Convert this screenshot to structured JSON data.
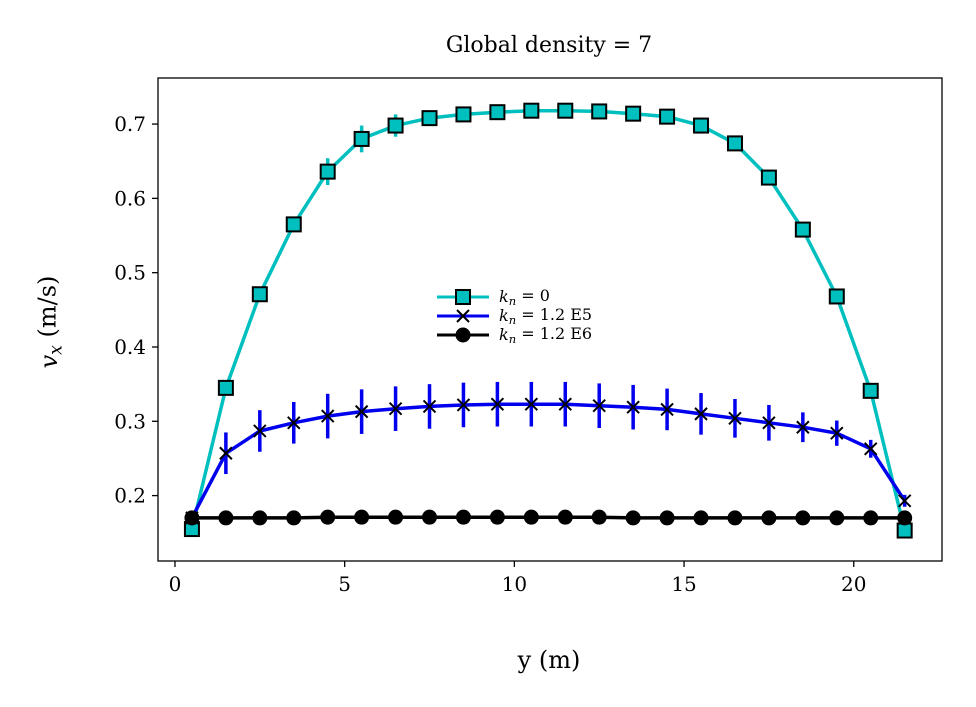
{
  "chart_data": {
    "type": "line",
    "title": "Global density = 7",
    "xlabel": "y (m)",
    "ylabel": "v_x (m/s)",
    "xlim": [
      -0.5,
      22.6
    ],
    "ylim": [
      0.112,
      0.762
    ],
    "xticks": [
      0,
      5,
      10,
      15,
      20
    ],
    "yticks": [
      0.2,
      0.3,
      0.4,
      0.5,
      0.6,
      0.7
    ],
    "xtick_labels": [
      "0",
      "5",
      "10",
      "15",
      "20"
    ],
    "ytick_labels": [
      "0.2",
      "0.3",
      "0.4",
      "0.5",
      "0.6",
      "0.7"
    ],
    "grid": false,
    "legend_position": "center",
    "x": [
      0.5,
      1.5,
      2.5,
      3.5,
      4.5,
      5.5,
      6.5,
      7.5,
      8.5,
      9.5,
      10.5,
      11.5,
      12.5,
      13.5,
      14.5,
      15.5,
      16.5,
      17.5,
      18.5,
      19.5,
      20.5,
      21.5
    ],
    "series": [
      {
        "name": "k_n = 0",
        "color": "#00bfbf",
        "marker": "square",
        "values": [
          0.155,
          0.345,
          0.471,
          0.565,
          0.636,
          0.68,
          0.698,
          0.708,
          0.713,
          0.716,
          0.718,
          0.718,
          0.717,
          0.714,
          0.71,
          0.698,
          0.674,
          0.628,
          0.558,
          0.468,
          0.341,
          0.153
        ],
        "errors": [
          0.005,
          0.005,
          0.006,
          0.01,
          0.018,
          0.018,
          0.015,
          0.01,
          0.006,
          0.005,
          0.005,
          0.005,
          0.005,
          0.005,
          0.005,
          0.006,
          0.006,
          0.006,
          0.006,
          0.006,
          0.006,
          0.005
        ]
      },
      {
        "name": "k_n = 1.2 E5",
        "color": "#0000ee",
        "marker": "x",
        "values": [
          0.17,
          0.257,
          0.287,
          0.298,
          0.307,
          0.313,
          0.317,
          0.32,
          0.322,
          0.323,
          0.323,
          0.323,
          0.321,
          0.319,
          0.316,
          0.31,
          0.304,
          0.298,
          0.292,
          0.284,
          0.263,
          0.193
        ],
        "errors": [
          0.005,
          0.028,
          0.028,
          0.028,
          0.03,
          0.03,
          0.03,
          0.03,
          0.03,
          0.03,
          0.03,
          0.03,
          0.03,
          0.03,
          0.028,
          0.028,
          0.026,
          0.024,
          0.02,
          0.017,
          0.012,
          0.008
        ]
      },
      {
        "name": "k_n = 1.2 E6",
        "color": "#000000",
        "marker": "circle",
        "values": [
          0.17,
          0.17,
          0.17,
          0.17,
          0.171,
          0.171,
          0.171,
          0.171,
          0.171,
          0.171,
          0.171,
          0.171,
          0.171,
          0.17,
          0.17,
          0.17,
          0.17,
          0.17,
          0.17,
          0.17,
          0.17,
          0.17
        ],
        "errors": [
          0,
          0,
          0,
          0,
          0,
          0,
          0,
          0,
          0,
          0,
          0,
          0,
          0,
          0,
          0,
          0,
          0,
          0,
          0,
          0,
          0,
          0
        ]
      }
    ]
  }
}
